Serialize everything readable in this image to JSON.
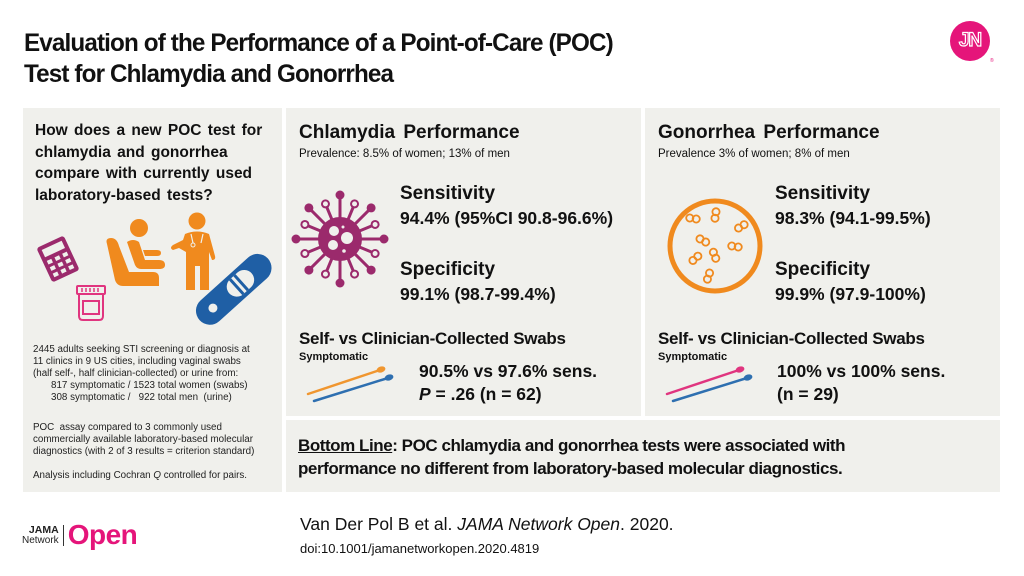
{
  "header": {
    "title_line1": "Evaluation of the Performance of a Point-of-Care (POC)",
    "title_line2": "Test for Chlamydia and Gonorrhea",
    "logo_text": "JN",
    "logo_color": "#e5157a"
  },
  "left_panel": {
    "question": "How does a new POC test for chlamydia and gonorrhea compare with currently used laboratory-based tests?",
    "icons": [
      "calculator-icon",
      "patient-in-chair-icon",
      "doctor-icon",
      "urine-cup-icon",
      "test-strip-icon"
    ],
    "population": {
      "line1": "2445 adults seeking STI screening or diagnosis at",
      "line2": "11 clinics in 9 US cities, including vaginal swabs",
      "line3": "(half self-, half clinician-collected) or urine from:",
      "women": "817 symptomatic / 1523 total women (swabs)",
      "men": "308 symptomatic /   922 total men  (urine)"
    },
    "comparison": {
      "line1": "POC  assay compared to 3 commonly used",
      "line2": "commercially available laboratory-based molecular",
      "line3": "diagnostics (with 2 of 3 results = criterion standard)"
    },
    "analysis_prefix": "Analysis including Cochran ",
    "analysis_q": "Q",
    "analysis_suffix": " controlled for pairs."
  },
  "chlamydia": {
    "title": "Chlamydia Performance",
    "prevalence": "Prevalence: 8.5% of women; 13% of men",
    "icon": "bacteria-virus-icon",
    "sensitivity_label": "Sensitivity",
    "sensitivity_value": "94.4%",
    "sensitivity_ci": " (95%CI 90.8-96.6%)",
    "specificity_label": "Specificity",
    "specificity_value": "99.1%",
    "specificity_ci": " (98.7-99.4%)",
    "swab_title": "Self- vs Clinician-Collected Swabs",
    "swab_subtitle": "Symptomatic",
    "swab_result_line1": "90.5% vs 97.6% sens.",
    "swab_p_label": "P",
    "swab_result_line2": " = .26 (n = 62)",
    "swab_colors": [
      "#f0962f",
      "#2e6fb0"
    ]
  },
  "gonorrhea": {
    "title": "Gonorrhea Performance",
    "prevalence": "Prevalence 3% of women; 8% of men",
    "icon": "diplococci-petri-dish-icon",
    "sensitivity_label": "Sensitivity",
    "sensitivity_value": "98.3%",
    "sensitivity_ci": " (94.1-99.5%)",
    "specificity_label": "Specificity",
    "specificity_value": "99.9%",
    "specificity_ci": " (97.9-100%)",
    "swab_title": "Self- vs Clinician-Collected Swabs",
    "swab_subtitle": "Symptomatic",
    "swab_result_line1": "100% vs 100% sens.",
    "swab_result_line2": "(n = 29)",
    "swab_colors": [
      "#e0357f",
      "#2e6fb0"
    ]
  },
  "bottom_line": {
    "label": "Bottom Line",
    "text_line1": ": POC chlamydia and gonorrhea tests were associated with",
    "text_line2": "performance no different from laboratory-based molecular diagnostics."
  },
  "footer": {
    "journal_small_1": "JAMA",
    "journal_small_2": "Network",
    "journal_open": "Open",
    "citation_authors": "Van Der Pol B et al. ",
    "citation_journal": "JAMA Network Open",
    "citation_year": ". 2020.",
    "doi": "doi:10.1001/jamanetworkopen.2020.4819"
  },
  "colors": {
    "magenta": "#e5157a",
    "plum": "#9b2a6c",
    "orange": "#f08a1e",
    "blue": "#1f5fa5",
    "panel_bg": "#f0f0ec"
  }
}
